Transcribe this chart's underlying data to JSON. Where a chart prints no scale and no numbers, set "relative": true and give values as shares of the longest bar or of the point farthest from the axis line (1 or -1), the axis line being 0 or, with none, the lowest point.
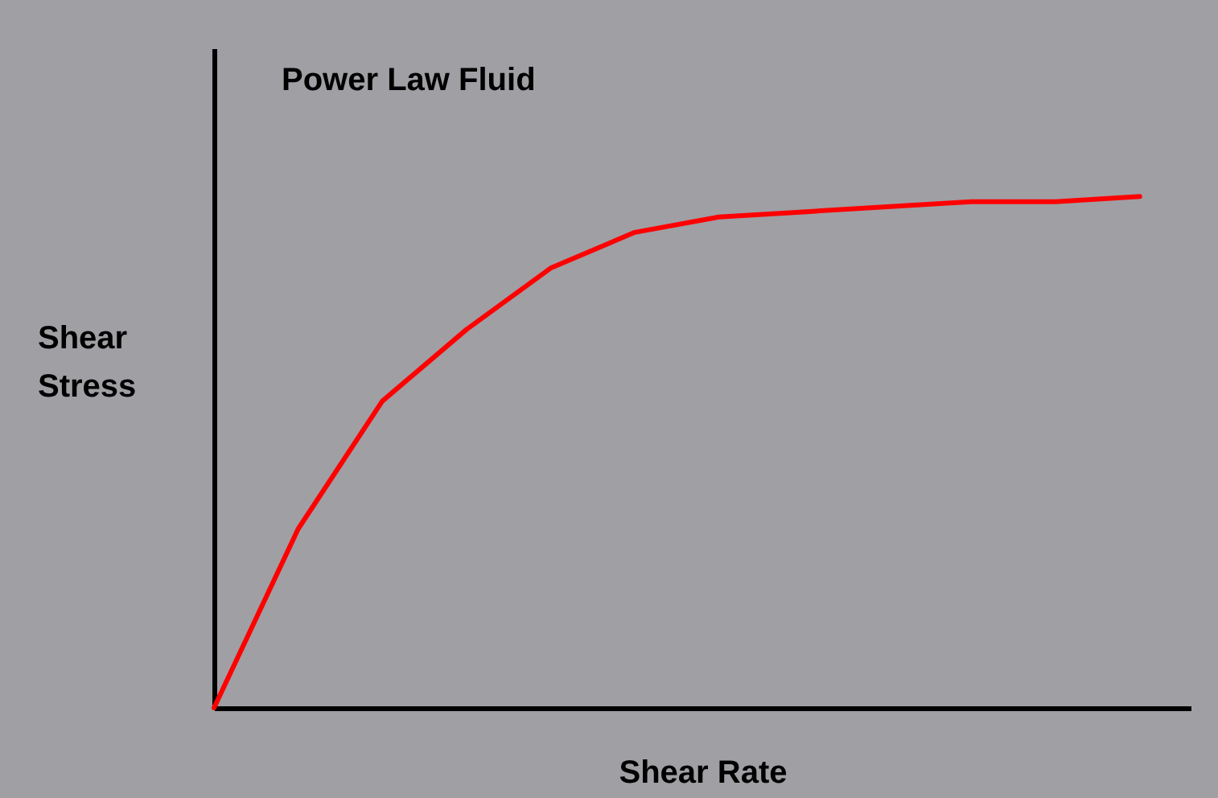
{
  "chart_data": {
    "type": "line",
    "title": "Power Law Fluid",
    "xlabel": "Shear Rate",
    "ylabel": "Shear Stress",
    "relative": true,
    "categories": [
      null,
      null,
      null,
      null,
      null,
      null,
      null,
      null,
      null,
      null,
      null,
      null
    ],
    "series": [
      {
        "color": "#ff0000",
        "values": [
          0,
          0.35,
          0.6,
          0.74,
          0.86,
          0.93,
          0.96,
          0.97,
          0.98,
          0.99,
          0.99,
          1
        ]
      }
    ],
    "line_style": "solid"
  }
}
